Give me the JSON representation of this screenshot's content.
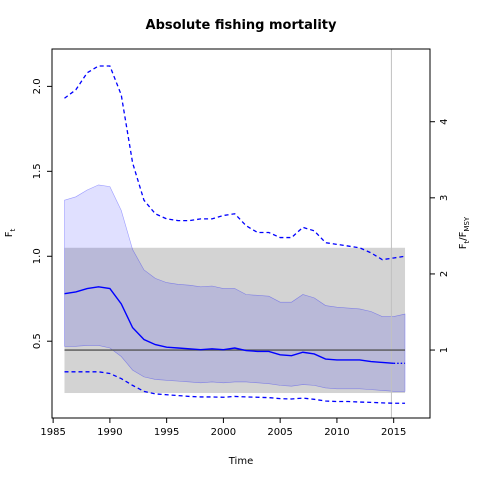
{
  "chart_data": {
    "type": "line",
    "title": "Absolute fishing mortality",
    "xlabel": "Time",
    "ylabel_main": "F",
    "ylabel_sub": "t",
    "y2label_main": "F",
    "y2label_sub_1": "t",
    "y2label_sep": "/F",
    "y2label_sub_2": "MSY",
    "xlim": [
      1984.9,
      2018.2
    ],
    "ylim": [
      0.048,
      2.22
    ],
    "x_ticks": [
      1985,
      1990,
      1995,
      2000,
      2005,
      2010,
      2015
    ],
    "y_ticks": [
      0.5,
      1.0,
      1.5,
      2.0
    ],
    "y_tick_labels": [
      "0.5",
      "1.0",
      "1.5",
      "2.0"
    ],
    "y2_ticks": [
      1,
      2,
      3,
      4
    ],
    "y2_scale_fmsy": 0.448,
    "fmsy_band": {
      "x0": 1986,
      "x1": 2016,
      "y0": 0.195,
      "y1": 1.05
    },
    "fmsy_line": 0.448,
    "vline_x": 2014.8,
    "colors": {
      "series": "#0000ff",
      "ci_fill": "#0000ff",
      "band": "#d3d3d3",
      "fmsy_line": "#555555",
      "vline": "#c0c0c0"
    },
    "series": [
      {
        "x": [
          1986,
          1987,
          1988,
          1989,
          1990,
          1991,
          1992,
          1993,
          1994,
          1995,
          1996,
          1997,
          1998,
          1999,
          2000,
          2001,
          2002,
          2003,
          2004,
          2005,
          2006,
          2007,
          2008,
          2009,
          2010,
          2011,
          2012,
          2013,
          2014,
          2015,
          2016
        ],
        "est": [
          0.78,
          0.79,
          0.81,
          0.82,
          0.81,
          0.72,
          0.58,
          0.51,
          0.48,
          0.465,
          0.46,
          0.455,
          0.45,
          0.455,
          0.45,
          0.46,
          0.445,
          0.44,
          0.44,
          0.42,
          0.415,
          0.435,
          0.425,
          0.395,
          0.39,
          0.39,
          0.39,
          0.38,
          0.375,
          0.37,
          0.37
        ],
        "upper": [
          1.33,
          1.35,
          1.39,
          1.42,
          1.41,
          1.27,
          1.04,
          0.92,
          0.87,
          0.845,
          0.835,
          0.83,
          0.82,
          0.825,
          0.81,
          0.81,
          0.775,
          0.77,
          0.765,
          0.73,
          0.73,
          0.775,
          0.755,
          0.71,
          0.7,
          0.695,
          0.69,
          0.675,
          0.645,
          0.645,
          0.66
        ],
        "lower": [
          0.47,
          0.47,
          0.475,
          0.475,
          0.46,
          0.41,
          0.33,
          0.29,
          0.275,
          0.27,
          0.265,
          0.26,
          0.255,
          0.26,
          0.255,
          0.26,
          0.26,
          0.255,
          0.25,
          0.24,
          0.235,
          0.245,
          0.24,
          0.225,
          0.22,
          0.22,
          0.22,
          0.215,
          0.21,
          0.205,
          0.205
        ],
        "upper_dashed": [
          1.93,
          1.98,
          2.08,
          2.12,
          2.12,
          1.95,
          1.55,
          1.33,
          1.25,
          1.22,
          1.21,
          1.21,
          1.22,
          1.22,
          1.24,
          1.25,
          1.18,
          1.14,
          1.14,
          1.11,
          1.11,
          1.17,
          1.15,
          1.08,
          1.07,
          1.06,
          1.05,
          1.02,
          0.98,
          0.99,
          1.0
        ],
        "lower_dashed": [
          0.32,
          0.32,
          0.32,
          0.32,
          0.31,
          0.28,
          0.24,
          0.205,
          0.19,
          0.185,
          0.18,
          0.175,
          0.172,
          0.172,
          0.17,
          0.175,
          0.172,
          0.17,
          0.168,
          0.162,
          0.16,
          0.165,
          0.158,
          0.148,
          0.145,
          0.145,
          0.142,
          0.14,
          0.137,
          0.135,
          0.135
        ]
      }
    ],
    "forecast_from_x": 2015
  }
}
